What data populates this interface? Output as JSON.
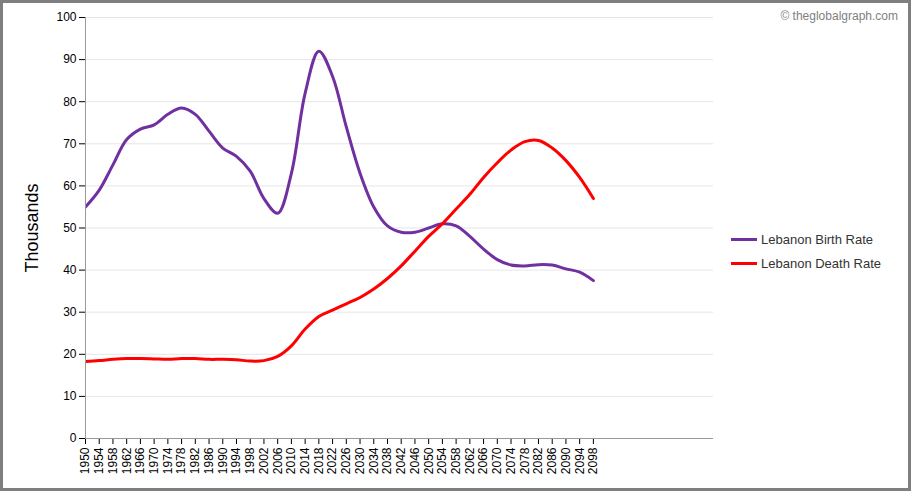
{
  "chart_data": {
    "type": "line",
    "y_label": "Thousands",
    "annotations": [
      "© theglobalgraph.com"
    ],
    "x": [
      1950,
      1954,
      1958,
      1962,
      1966,
      1970,
      1974,
      1978,
      1982,
      1986,
      1990,
      1994,
      1998,
      2002,
      2006,
      2010,
      2014,
      2018,
      2022,
      2026,
      2030,
      2034,
      2038,
      2042,
      2046,
      2050,
      2054,
      2058,
      2062,
      2066,
      2070,
      2074,
      2078,
      2082,
      2086,
      2090,
      2094,
      2098
    ],
    "xlim": [
      1950,
      2133
    ],
    "xticks": [
      1950,
      1954,
      1958,
      1962,
      1966,
      1970,
      1974,
      1978,
      1982,
      1986,
      1990,
      1994,
      1998,
      2002,
      2006,
      2010,
      2014,
      2018,
      2022,
      2026,
      2030,
      2034,
      2038,
      2042,
      2046,
      2050,
      2054,
      2058,
      2062,
      2066,
      2070,
      2074,
      2078,
      2082,
      2086,
      2090,
      2094,
      2098
    ],
    "ylim": [
      0,
      100
    ],
    "yticks": [
      0,
      10,
      20,
      30,
      40,
      50,
      60,
      70,
      80,
      90,
      100
    ],
    "grid": true,
    "legend": "right",
    "series": [
      {
        "name": "Lebanon Birth Rate",
        "color": "#7030a0",
        "values": [
          55,
          59,
          65,
          71,
          73.5,
          74.5,
          77,
          78.5,
          77,
          73,
          69,
          67,
          63.5,
          57,
          53.5,
          63,
          82,
          92,
          86,
          74,
          63,
          55,
          50.5,
          49,
          49,
          50,
          51,
          50.5,
          48,
          45,
          42.5,
          41.2,
          41,
          41.3,
          41.2,
          40.3,
          39.5,
          37.5
        ]
      },
      {
        "name": "Lebanon Death Rate",
        "color": "#ff0000",
        "values": [
          18.3,
          18.5,
          18.8,
          19,
          19,
          18.9,
          18.8,
          19,
          19,
          18.8,
          18.8,
          18.7,
          18.4,
          18.5,
          19.5,
          22,
          26,
          29,
          30.5,
          32,
          33.5,
          35.5,
          38,
          41,
          44.5,
          48,
          51,
          54.5,
          58,
          62,
          65.5,
          68.5,
          70.5,
          70.8,
          69,
          66,
          62,
          57
        ]
      }
    ]
  }
}
